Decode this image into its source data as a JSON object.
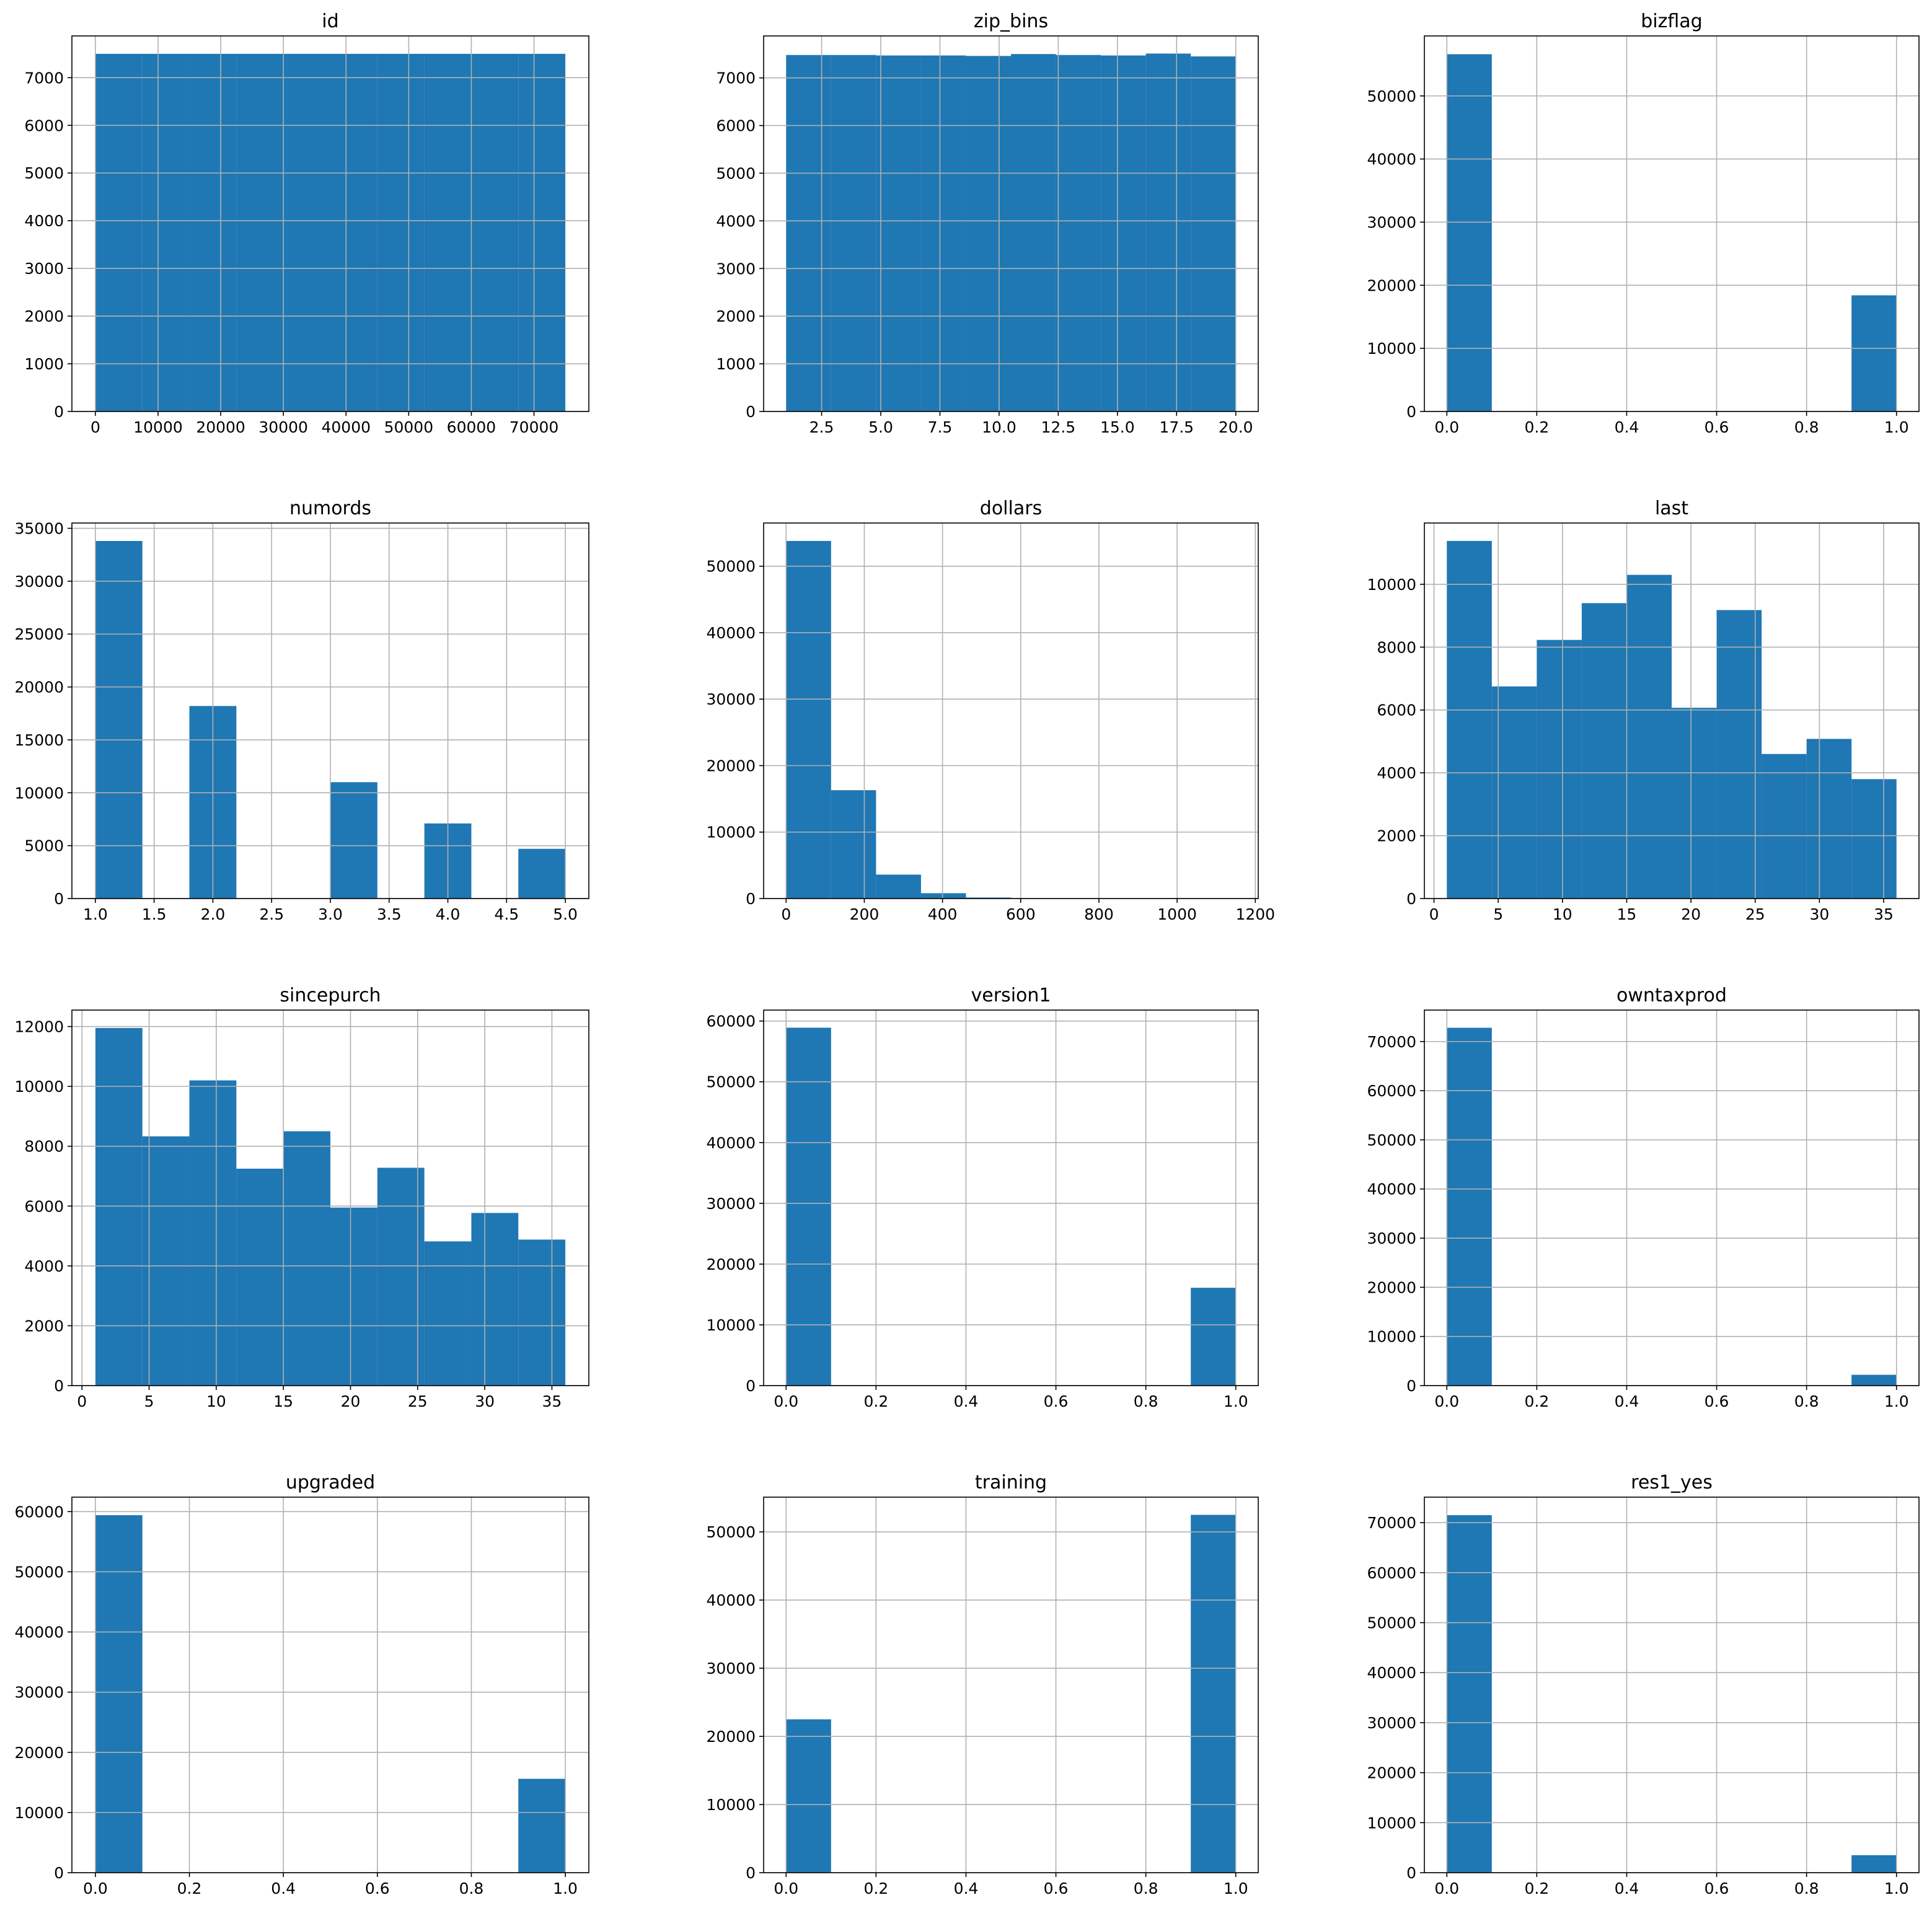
{
  "figure": {
    "layout": "4x3 histogram grid",
    "bar_color": "#1f77b4",
    "grid_color": "#b0b0b0",
    "frame_color": "#000000",
    "background": "#ffffff"
  },
  "chart_data": [
    {
      "type": "bar",
      "title": "id",
      "bins": [
        [
          0,
          7500
        ],
        [
          7500,
          15000
        ],
        [
          15000,
          22500
        ],
        [
          22500,
          30000
        ],
        [
          30000,
          37500
        ],
        [
          37500,
          45000
        ],
        [
          45000,
          52500
        ],
        [
          52500,
          60000
        ],
        [
          60000,
          67500
        ],
        [
          67500,
          75000
        ]
      ],
      "counts": [
        7500,
        7500,
        7500,
        7500,
        7500,
        7500,
        7500,
        7500,
        7500,
        7500
      ],
      "xlim": [
        -3750,
        78750
      ],
      "ylim": [
        0,
        7875
      ],
      "xticks": [
        0,
        10000,
        20000,
        30000,
        40000,
        50000,
        60000,
        70000
      ],
      "xtick_labels": [
        "0",
        "10000",
        "20000",
        "30000",
        "40000",
        "50000",
        "60000",
        "70000"
      ],
      "yticks": [
        0,
        1000,
        2000,
        3000,
        4000,
        5000,
        6000,
        7000
      ],
      "ytick_labels": [
        "0",
        "1000",
        "2000",
        "3000",
        "4000",
        "5000",
        "6000",
        "7000"
      ],
      "grid": true
    },
    {
      "type": "bar",
      "title": "zip_bins",
      "bins": [
        [
          1,
          2.9
        ],
        [
          2.9,
          4.8
        ],
        [
          4.8,
          6.7
        ],
        [
          6.7,
          8.6
        ],
        [
          8.6,
          10.5
        ],
        [
          10.5,
          12.4
        ],
        [
          12.4,
          14.3
        ],
        [
          14.3,
          16.2
        ],
        [
          16.2,
          18.1
        ],
        [
          18.1,
          20
        ]
      ],
      "counts": [
        7480,
        7480,
        7470,
        7470,
        7460,
        7500,
        7480,
        7470,
        7510,
        7450
      ],
      "xlim": [
        0.05,
        20.95
      ],
      "ylim": [
        0,
        7880
      ],
      "xticks": [
        2.5,
        5,
        7.5,
        10,
        12.5,
        15,
        17.5,
        20
      ],
      "xtick_labels": [
        "2.5",
        "5.0",
        "7.5",
        "10.0",
        "12.5",
        "15.0",
        "17.5",
        "20.0"
      ],
      "yticks": [
        0,
        1000,
        2000,
        3000,
        4000,
        5000,
        6000,
        7000
      ],
      "ytick_labels": [
        "0",
        "1000",
        "2000",
        "3000",
        "4000",
        "5000",
        "6000",
        "7000"
      ],
      "grid": true
    },
    {
      "type": "bar",
      "title": "bizflag",
      "bins": [
        [
          0,
          0.1
        ],
        [
          0.1,
          0.2
        ],
        [
          0.2,
          0.3
        ],
        [
          0.3,
          0.4
        ],
        [
          0.4,
          0.5
        ],
        [
          0.5,
          0.6
        ],
        [
          0.6,
          0.7
        ],
        [
          0.7,
          0.8
        ],
        [
          0.8,
          0.9
        ],
        [
          0.9,
          1.0
        ]
      ],
      "counts": [
        56600,
        0,
        0,
        0,
        0,
        0,
        0,
        0,
        0,
        18400
      ],
      "xlim": [
        -0.05,
        1.05
      ],
      "ylim": [
        0,
        59500
      ],
      "xticks": [
        0,
        0.2,
        0.4,
        0.6,
        0.8,
        1.0
      ],
      "xtick_labels": [
        "0.0",
        "0.2",
        "0.4",
        "0.6",
        "0.8",
        "1.0"
      ],
      "yticks": [
        0,
        10000,
        20000,
        30000,
        40000,
        50000
      ],
      "ytick_labels": [
        "0",
        "10000",
        "20000",
        "30000",
        "40000",
        "50000"
      ],
      "grid": true
    },
    {
      "type": "bar",
      "title": "numords",
      "bins": [
        [
          1,
          1.4
        ],
        [
          1.4,
          1.8
        ],
        [
          1.8,
          2.2
        ],
        [
          2.2,
          2.6
        ],
        [
          2.6,
          3.0
        ],
        [
          3.0,
          3.4
        ],
        [
          3.4,
          3.8
        ],
        [
          3.8,
          4.2
        ],
        [
          4.2,
          4.6
        ],
        [
          4.6,
          5.0
        ]
      ],
      "counts": [
        33800,
        0,
        18200,
        0,
        0,
        11000,
        0,
        7100,
        0,
        4700
      ],
      "xlim": [
        0.8,
        5.2
      ],
      "ylim": [
        0,
        35500
      ],
      "xticks": [
        1,
        1.5,
        2,
        2.5,
        3,
        3.5,
        4,
        4.5,
        5
      ],
      "xtick_labels": [
        "1.0",
        "1.5",
        "2.0",
        "2.5",
        "3.0",
        "3.5",
        "4.0",
        "4.5",
        "5.0"
      ],
      "yticks": [
        0,
        5000,
        10000,
        15000,
        20000,
        25000,
        30000,
        35000
      ],
      "ytick_labels": [
        "0",
        "5000",
        "10000",
        "15000",
        "20000",
        "25000",
        "30000",
        "35000"
      ],
      "grid": true
    },
    {
      "type": "bar",
      "title": "dollars",
      "bins": [
        [
          0,
          115
        ],
        [
          115,
          230
        ],
        [
          230,
          345
        ],
        [
          345,
          460
        ],
        [
          460,
          575
        ],
        [
          575,
          690
        ],
        [
          690,
          805
        ],
        [
          805,
          920
        ],
        [
          920,
          1035
        ],
        [
          1035,
          1150
        ]
      ],
      "counts": [
        53800,
        16300,
        3600,
        800,
        150,
        40,
        15,
        8,
        4,
        3
      ],
      "xlim": [
        -57.5,
        1207.5
      ],
      "ylim": [
        0,
        56500
      ],
      "xticks": [
        0,
        200,
        400,
        600,
        800,
        1000,
        1200
      ],
      "xtick_labels": [
        "0",
        "200",
        "400",
        "600",
        "800",
        "1000",
        "1200"
      ],
      "yticks": [
        0,
        10000,
        20000,
        30000,
        40000,
        50000
      ],
      "ytick_labels": [
        "0",
        "10000",
        "20000",
        "30000",
        "40000",
        "50000"
      ],
      "grid": true
    },
    {
      "type": "bar",
      "title": "last",
      "bins": [
        [
          1,
          4.5
        ],
        [
          4.5,
          8
        ],
        [
          8,
          11.5
        ],
        [
          11.5,
          15
        ],
        [
          15,
          18.5
        ],
        [
          18.5,
          22
        ],
        [
          22,
          25.5
        ],
        [
          25.5,
          29
        ],
        [
          29,
          32.5
        ],
        [
          32.5,
          36
        ]
      ],
      "counts": [
        11380,
        6750,
        8230,
        9400,
        10300,
        6070,
        9180,
        4600,
        5080,
        3800
      ],
      "xlim": [
        -0.75,
        37.75
      ],
      "ylim": [
        0,
        11950
      ],
      "xticks": [
        0,
        5,
        10,
        15,
        20,
        25,
        30,
        35
      ],
      "xtick_labels": [
        "0",
        "5",
        "10",
        "15",
        "20",
        "25",
        "30",
        "35"
      ],
      "yticks": [
        0,
        2000,
        4000,
        6000,
        8000,
        10000
      ],
      "ytick_labels": [
        "0",
        "2000",
        "4000",
        "6000",
        "8000",
        "10000"
      ],
      "grid": true
    },
    {
      "type": "bar",
      "title": "sincepurch",
      "bins": [
        [
          1,
          4.5
        ],
        [
          4.5,
          8
        ],
        [
          8,
          11.5
        ],
        [
          11.5,
          15
        ],
        [
          15,
          18.5
        ],
        [
          18.5,
          22
        ],
        [
          22,
          25.5
        ],
        [
          25.5,
          29
        ],
        [
          29,
          32.5
        ],
        [
          32.5,
          36
        ]
      ],
      "counts": [
        11950,
        8330,
        10200,
        7250,
        8500,
        5950,
        7280,
        4820,
        5770,
        4880
      ],
      "xlim": [
        -0.75,
        37.75
      ],
      "ylim": [
        0,
        12550
      ],
      "xticks": [
        0,
        5,
        10,
        15,
        20,
        25,
        30,
        35
      ],
      "xtick_labels": [
        "0",
        "5",
        "10",
        "15",
        "20",
        "25",
        "30",
        "35"
      ],
      "yticks": [
        0,
        2000,
        4000,
        6000,
        8000,
        10000,
        12000
      ],
      "ytick_labels": [
        "0",
        "2000",
        "4000",
        "6000",
        "8000",
        "10000",
        "12000"
      ],
      "grid": true
    },
    {
      "type": "bar",
      "title": "version1",
      "bins": [
        [
          0,
          0.1
        ],
        [
          0.1,
          0.2
        ],
        [
          0.2,
          0.3
        ],
        [
          0.3,
          0.4
        ],
        [
          0.4,
          0.5
        ],
        [
          0.5,
          0.6
        ],
        [
          0.6,
          0.7
        ],
        [
          0.7,
          0.8
        ],
        [
          0.8,
          0.9
        ],
        [
          0.9,
          1.0
        ]
      ],
      "counts": [
        58900,
        0,
        0,
        0,
        0,
        0,
        0,
        0,
        0,
        16100
      ],
      "xlim": [
        -0.05,
        1.05
      ],
      "ylim": [
        0,
        61800
      ],
      "xticks": [
        0,
        0.2,
        0.4,
        0.6,
        0.8,
        1.0
      ],
      "xtick_labels": [
        "0.0",
        "0.2",
        "0.4",
        "0.6",
        "0.8",
        "1.0"
      ],
      "yticks": [
        0,
        10000,
        20000,
        30000,
        40000,
        50000,
        60000
      ],
      "ytick_labels": [
        "0",
        "10000",
        "20000",
        "30000",
        "40000",
        "50000",
        "60000"
      ],
      "grid": true
    },
    {
      "type": "bar",
      "title": "owntaxprod",
      "bins": [
        [
          0,
          0.1
        ],
        [
          0.1,
          0.2
        ],
        [
          0.2,
          0.3
        ],
        [
          0.3,
          0.4
        ],
        [
          0.4,
          0.5
        ],
        [
          0.5,
          0.6
        ],
        [
          0.6,
          0.7
        ],
        [
          0.7,
          0.8
        ],
        [
          0.8,
          0.9
        ],
        [
          0.9,
          1.0
        ]
      ],
      "counts": [
        72800,
        0,
        0,
        0,
        0,
        0,
        0,
        0,
        0,
        2200
      ],
      "xlim": [
        -0.05,
        1.05
      ],
      "ylim": [
        0,
        76400
      ],
      "xticks": [
        0,
        0.2,
        0.4,
        0.6,
        0.8,
        1.0
      ],
      "xtick_labels": [
        "0.0",
        "0.2",
        "0.4",
        "0.6",
        "0.8",
        "1.0"
      ],
      "yticks": [
        0,
        10000,
        20000,
        30000,
        40000,
        50000,
        60000,
        70000
      ],
      "ytick_labels": [
        "0",
        "10000",
        "20000",
        "30000",
        "40000",
        "50000",
        "60000",
        "70000"
      ],
      "grid": true
    },
    {
      "type": "bar",
      "title": "upgraded",
      "bins": [
        [
          0,
          0.1
        ],
        [
          0.1,
          0.2
        ],
        [
          0.2,
          0.3
        ],
        [
          0.3,
          0.4
        ],
        [
          0.4,
          0.5
        ],
        [
          0.5,
          0.6
        ],
        [
          0.6,
          0.7
        ],
        [
          0.7,
          0.8
        ],
        [
          0.8,
          0.9
        ],
        [
          0.9,
          1.0
        ]
      ],
      "counts": [
        59400,
        0,
        0,
        0,
        0,
        0,
        0,
        0,
        0,
        15600
      ],
      "xlim": [
        -0.05,
        1.05
      ],
      "ylim": [
        0,
        62400
      ],
      "xticks": [
        0,
        0.2,
        0.4,
        0.6,
        0.8,
        1.0
      ],
      "xtick_labels": [
        "0.0",
        "0.2",
        "0.4",
        "0.6",
        "0.8",
        "1.0"
      ],
      "yticks": [
        0,
        10000,
        20000,
        30000,
        40000,
        50000,
        60000
      ],
      "ytick_labels": [
        "0",
        "10000",
        "20000",
        "30000",
        "40000",
        "50000",
        "60000"
      ],
      "grid": true
    },
    {
      "type": "bar",
      "title": "training",
      "bins": [
        [
          0,
          0.1
        ],
        [
          0.1,
          0.2
        ],
        [
          0.2,
          0.3
        ],
        [
          0.3,
          0.4
        ],
        [
          0.4,
          0.5
        ],
        [
          0.5,
          0.6
        ],
        [
          0.6,
          0.7
        ],
        [
          0.7,
          0.8
        ],
        [
          0.8,
          0.9
        ],
        [
          0.9,
          1.0
        ]
      ],
      "counts": [
        22500,
        0,
        0,
        0,
        0,
        0,
        0,
        0,
        0,
        52500
      ],
      "xlim": [
        -0.05,
        1.05
      ],
      "ylim": [
        0,
        55100
      ],
      "xticks": [
        0,
        0.2,
        0.4,
        0.6,
        0.8,
        1.0
      ],
      "xtick_labels": [
        "0.0",
        "0.2",
        "0.4",
        "0.6",
        "0.8",
        "1.0"
      ],
      "yticks": [
        0,
        10000,
        20000,
        30000,
        40000,
        50000
      ],
      "ytick_labels": [
        "0",
        "10000",
        "20000",
        "30000",
        "40000",
        "50000"
      ],
      "grid": true
    },
    {
      "type": "bar",
      "title": "res1_yes",
      "bins": [
        [
          0,
          0.1
        ],
        [
          0.1,
          0.2
        ],
        [
          0.2,
          0.3
        ],
        [
          0.3,
          0.4
        ],
        [
          0.4,
          0.5
        ],
        [
          0.5,
          0.6
        ],
        [
          0.6,
          0.7
        ],
        [
          0.7,
          0.8
        ],
        [
          0.8,
          0.9
        ],
        [
          0.9,
          1.0
        ]
      ],
      "counts": [
        71500,
        0,
        0,
        0,
        0,
        0,
        0,
        0,
        0,
        3500
      ],
      "xlim": [
        -0.05,
        1.05
      ],
      "ylim": [
        0,
        75100
      ],
      "xticks": [
        0,
        0.2,
        0.4,
        0.6,
        0.8,
        1.0
      ],
      "xtick_labels": [
        "0.0",
        "0.2",
        "0.4",
        "0.6",
        "0.8",
        "1.0"
      ],
      "yticks": [
        0,
        10000,
        20000,
        30000,
        40000,
        50000,
        60000,
        70000
      ],
      "ytick_labels": [
        "0",
        "10000",
        "20000",
        "30000",
        "40000",
        "50000",
        "60000",
        "70000"
      ],
      "grid": true
    }
  ]
}
